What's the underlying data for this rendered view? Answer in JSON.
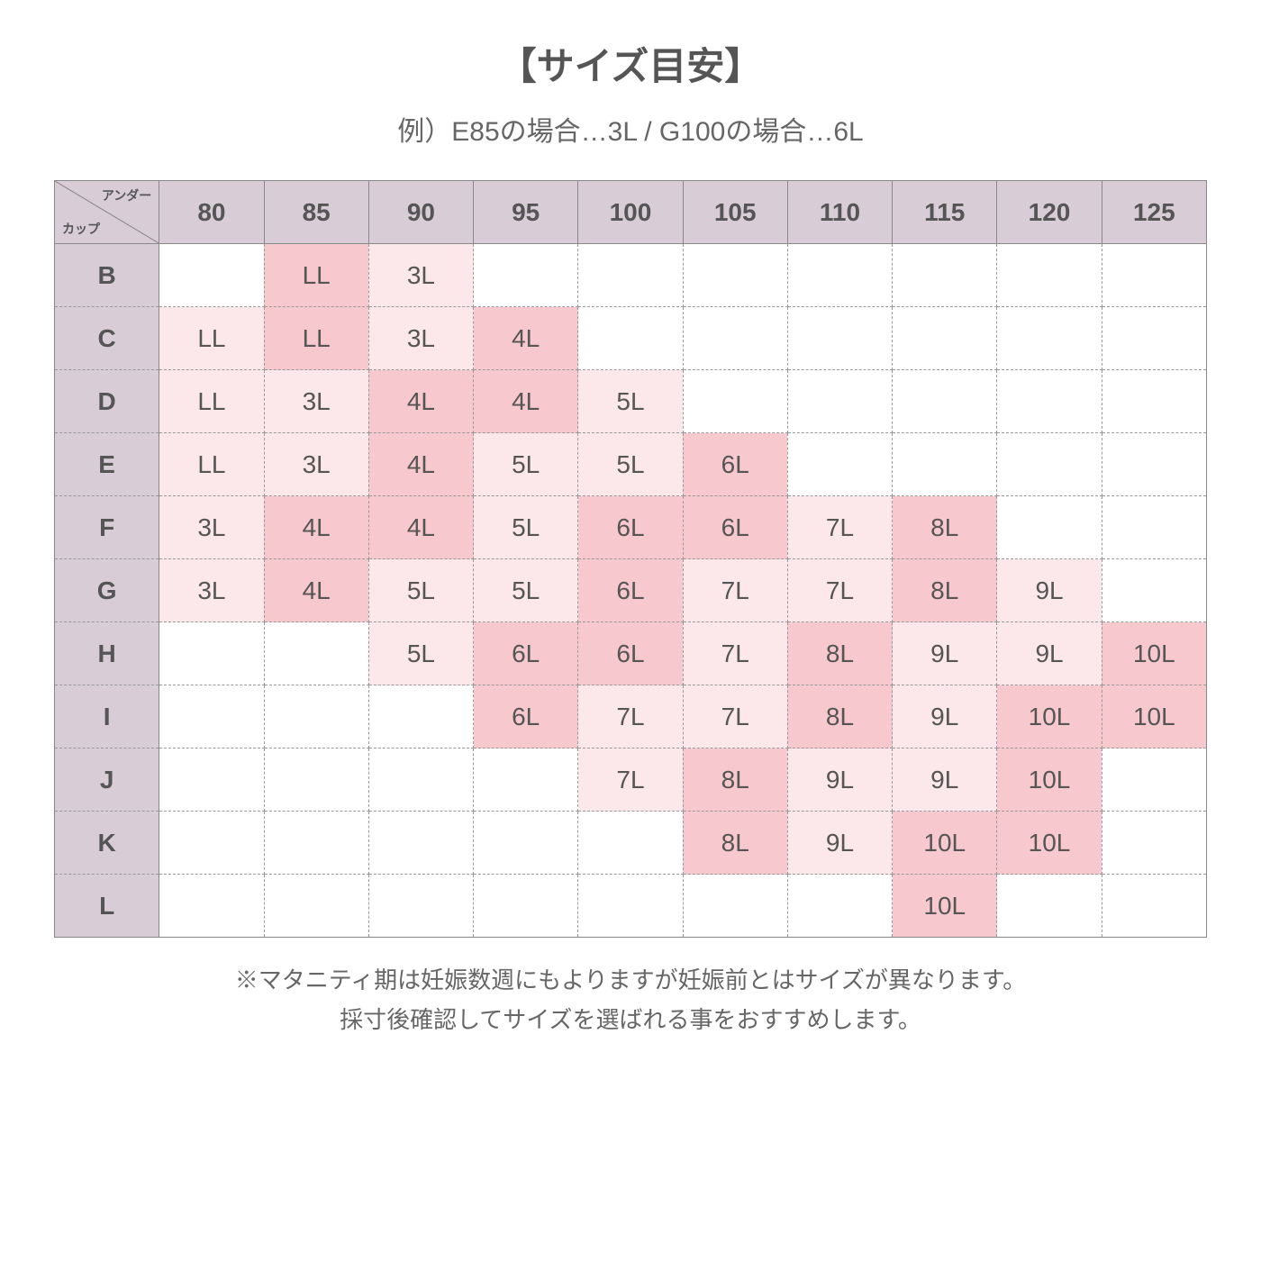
{
  "title": "【サイズ目安】",
  "subtitle": "例）E85の場合…3L  /  G100の場合…6L",
  "corner": {
    "top": "アンダー",
    "bottom": "カップ"
  },
  "columns": [
    "80",
    "85",
    "90",
    "95",
    "100",
    "105",
    "110",
    "115",
    "120",
    "125"
  ],
  "rows": [
    {
      "cup": "B",
      "cells": [
        {
          "v": ""
        },
        {
          "v": "LL",
          "s": "dark"
        },
        {
          "v": "3L",
          "s": "light"
        },
        {
          "v": ""
        },
        {
          "v": ""
        },
        {
          "v": ""
        },
        {
          "v": ""
        },
        {
          "v": ""
        },
        {
          "v": ""
        },
        {
          "v": ""
        }
      ]
    },
    {
      "cup": "C",
      "cells": [
        {
          "v": "LL",
          "s": "light"
        },
        {
          "v": "LL",
          "s": "dark"
        },
        {
          "v": "3L",
          "s": "light"
        },
        {
          "v": "4L",
          "s": "dark"
        },
        {
          "v": ""
        },
        {
          "v": ""
        },
        {
          "v": ""
        },
        {
          "v": ""
        },
        {
          "v": ""
        },
        {
          "v": ""
        }
      ]
    },
    {
      "cup": "D",
      "cells": [
        {
          "v": "LL",
          "s": "light"
        },
        {
          "v": "3L",
          "s": "light"
        },
        {
          "v": "4L",
          "s": "dark"
        },
        {
          "v": "4L",
          "s": "dark"
        },
        {
          "v": "5L",
          "s": "light"
        },
        {
          "v": ""
        },
        {
          "v": ""
        },
        {
          "v": ""
        },
        {
          "v": ""
        },
        {
          "v": ""
        }
      ]
    },
    {
      "cup": "E",
      "cells": [
        {
          "v": "LL",
          "s": "light"
        },
        {
          "v": "3L",
          "s": "light"
        },
        {
          "v": "4L",
          "s": "dark"
        },
        {
          "v": "5L",
          "s": "light"
        },
        {
          "v": "5L",
          "s": "light"
        },
        {
          "v": "6L",
          "s": "dark"
        },
        {
          "v": ""
        },
        {
          "v": ""
        },
        {
          "v": ""
        },
        {
          "v": ""
        }
      ]
    },
    {
      "cup": "F",
      "cells": [
        {
          "v": "3L",
          "s": "light"
        },
        {
          "v": "4L",
          "s": "dark"
        },
        {
          "v": "4L",
          "s": "dark"
        },
        {
          "v": "5L",
          "s": "light"
        },
        {
          "v": "6L",
          "s": "dark"
        },
        {
          "v": "6L",
          "s": "dark"
        },
        {
          "v": "7L",
          "s": "light"
        },
        {
          "v": "8L",
          "s": "dark"
        },
        {
          "v": ""
        },
        {
          "v": ""
        }
      ]
    },
    {
      "cup": "G",
      "cells": [
        {
          "v": "3L",
          "s": "light"
        },
        {
          "v": "4L",
          "s": "dark"
        },
        {
          "v": "5L",
          "s": "light"
        },
        {
          "v": "5L",
          "s": "light"
        },
        {
          "v": "6L",
          "s": "dark"
        },
        {
          "v": "7L",
          "s": "light"
        },
        {
          "v": "7L",
          "s": "light"
        },
        {
          "v": "8L",
          "s": "dark"
        },
        {
          "v": "9L",
          "s": "light"
        },
        {
          "v": ""
        }
      ]
    },
    {
      "cup": "H",
      "cells": [
        {
          "v": ""
        },
        {
          "v": ""
        },
        {
          "v": "5L",
          "s": "light"
        },
        {
          "v": "6L",
          "s": "dark"
        },
        {
          "v": "6L",
          "s": "dark"
        },
        {
          "v": "7L",
          "s": "light"
        },
        {
          "v": "8L",
          "s": "dark"
        },
        {
          "v": "9L",
          "s": "light"
        },
        {
          "v": "9L",
          "s": "light"
        },
        {
          "v": "10L",
          "s": "dark"
        }
      ]
    },
    {
      "cup": "I",
      "cells": [
        {
          "v": ""
        },
        {
          "v": ""
        },
        {
          "v": ""
        },
        {
          "v": "6L",
          "s": "dark"
        },
        {
          "v": "7L",
          "s": "light"
        },
        {
          "v": "7L",
          "s": "light"
        },
        {
          "v": "8L",
          "s": "dark"
        },
        {
          "v": "9L",
          "s": "light"
        },
        {
          "v": "10L",
          "s": "dark"
        },
        {
          "v": "10L",
          "s": "dark"
        }
      ]
    },
    {
      "cup": "J",
      "cells": [
        {
          "v": ""
        },
        {
          "v": ""
        },
        {
          "v": ""
        },
        {
          "v": ""
        },
        {
          "v": "7L",
          "s": "light"
        },
        {
          "v": "8L",
          "s": "dark"
        },
        {
          "v": "9L",
          "s": "light"
        },
        {
          "v": "9L",
          "s": "light"
        },
        {
          "v": "10L",
          "s": "dark"
        },
        {
          "v": ""
        }
      ]
    },
    {
      "cup": "K",
      "cells": [
        {
          "v": ""
        },
        {
          "v": ""
        },
        {
          "v": ""
        },
        {
          "v": ""
        },
        {
          "v": ""
        },
        {
          "v": "8L",
          "s": "dark"
        },
        {
          "v": "9L",
          "s": "light"
        },
        {
          "v": "10L",
          "s": "dark"
        },
        {
          "v": "10L",
          "s": "dark"
        },
        {
          "v": ""
        }
      ]
    },
    {
      "cup": "L",
      "cells": [
        {
          "v": ""
        },
        {
          "v": ""
        },
        {
          "v": ""
        },
        {
          "v": ""
        },
        {
          "v": ""
        },
        {
          "v": ""
        },
        {
          "v": ""
        },
        {
          "v": "10L",
          "s": "dark"
        },
        {
          "v": ""
        },
        {
          "v": ""
        }
      ]
    }
  ],
  "footnote_line1": "※マタニティ期は妊娠数週にもよりますが妊娠前とはサイズが異なります。",
  "footnote_line2": "採寸後確認してサイズを選ばれる事をおすすめします。",
  "colors": {
    "header_bg": "#d8ccd6",
    "shade_light": "#fce8ea",
    "shade_dark": "#f7c8cd",
    "border_solid": "#888888",
    "border_dash": "#999999",
    "text": "#555555",
    "background": "#ffffff"
  }
}
